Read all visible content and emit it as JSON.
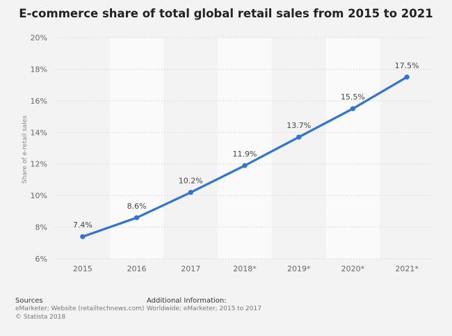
{
  "chart_data": {
    "type": "line",
    "title": "E-commerce share of total global retail sales from 2015 to 2021",
    "ylabel": "Share of e-retail sales",
    "xlabel": "",
    "categories": [
      "2015",
      "2016",
      "2017",
      "2018*",
      "2019*",
      "2020*",
      "2021*"
    ],
    "series": [
      {
        "values": [
          7.4,
          8.6,
          10.2,
          11.9,
          13.7,
          15.5,
          17.5
        ]
      }
    ],
    "data_labels": [
      "7.4%",
      "8.6%",
      "10.2%",
      "11.9%",
      "13.7%",
      "15.5%",
      "17.5%"
    ],
    "ylim": [
      6,
      20
    ],
    "yticks": [
      6,
      8,
      10,
      12,
      14,
      16,
      18,
      20
    ],
    "ytick_labels": [
      "6%",
      "8%",
      "10%",
      "12%",
      "14%",
      "16%",
      "18%",
      "20%"
    ],
    "grid": true,
    "legend": "none",
    "colors": {
      "line": "#2f73d8",
      "band": "#fafafa",
      "grid": "#dcdcdc"
    }
  },
  "footer": {
    "sources_heading": "Sources",
    "sources_line1": "eMarketer; Website (retailtechnews.com)",
    "sources_line2": "© Statista 2018",
    "additional_heading": "Additional Information:",
    "additional_line1": "Worldwide; eMarketer; 2015 to 2017"
  }
}
